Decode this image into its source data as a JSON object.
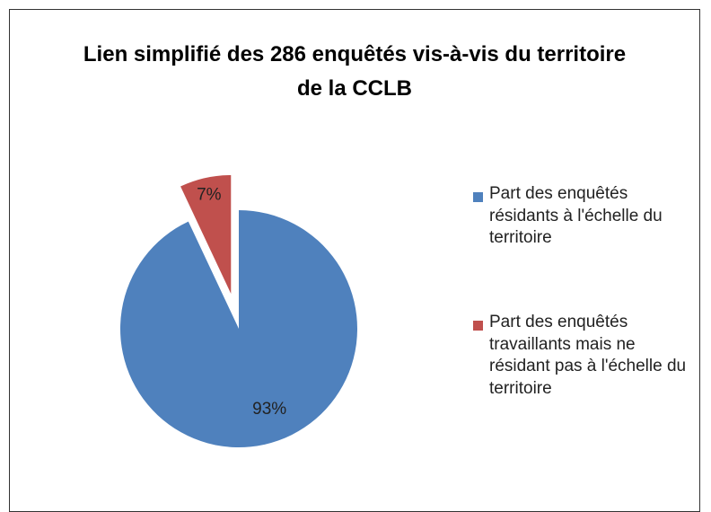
{
  "chart_data": {
    "type": "pie",
    "title": "Lien simplifié des 286 enquêtés vis-à-vis du territoire de la CCLB",
    "categories": [
      "Part des enquêtés résidants à l'échelle du territoire",
      "Part des enquêtés travaillants mais ne résidant pas à l'échelle du territoire"
    ],
    "values": [
      93,
      7
    ],
    "value_labels": [
      "93%",
      "7%"
    ],
    "colors": [
      "#4f81bd",
      "#c0504d"
    ],
    "legend": "right"
  }
}
